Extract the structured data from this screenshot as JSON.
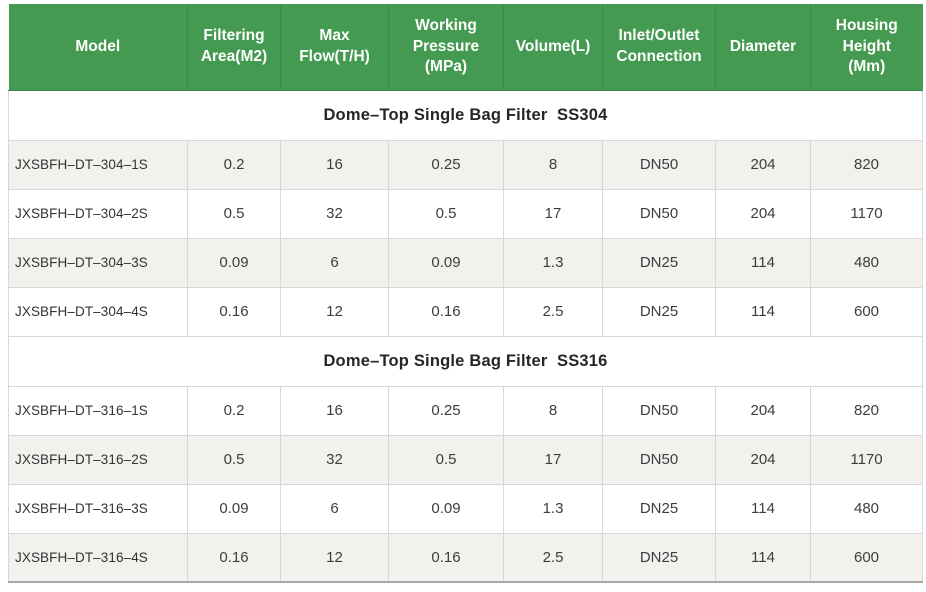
{
  "colors": {
    "header_bg": "#459a51",
    "header_divider": "#3a8a45",
    "header_text": "#ffffff",
    "row_alt_bg": "#f2f1ee",
    "grid_border": "#d8d8d8",
    "bottom_border": "#a6a6a6",
    "body_text": "#3d3d3d",
    "section_text": "#262626"
  },
  "chart_data": {
    "type": "table",
    "columns": [
      "Model",
      "Filtering Area(M2)",
      "Max Flow(T/H)",
      "Working Pressure (MPa)",
      "Volume(L)",
      "Inlet/Outlet Connection",
      "Diameter",
      "Housing Height (Mm)"
    ],
    "columns_display": [
      "Model",
      "Filtering\nArea(M2)",
      "Max\nFlow(T/H)",
      "Working\nPressure\n(MPa)",
      "Volume(L)",
      "Inlet/Outlet\nConnection",
      "Diameter",
      "Housing\nHeight\n(Mm)"
    ],
    "sections": [
      {
        "title": "Dome–Top Single Bag Filter  SS304",
        "rows": [
          [
            "JXSBFH–DT–304–1S",
            "0.2",
            "16",
            "0.25",
            "8",
            "DN50",
            "204",
            "820"
          ],
          [
            "JXSBFH–DT–304–2S",
            "0.5",
            "32",
            "0.5",
            "17",
            "DN50",
            "204",
            "1170"
          ],
          [
            "JXSBFH–DT–304–3S",
            "0.09",
            "6",
            "0.09",
            "1.3",
            "DN25",
            "114",
            "480"
          ],
          [
            "JXSBFH–DT–304–4S",
            "0.16",
            "12",
            "0.16",
            "2.5",
            "DN25",
            "114",
            "600"
          ]
        ]
      },
      {
        "title": "Dome–Top Single Bag Filter  SS316",
        "rows": [
          [
            "JXSBFH–DT–316–1S",
            "0.2",
            "16",
            "0.25",
            "8",
            "DN50",
            "204",
            "820"
          ],
          [
            "JXSBFH–DT–316–2S",
            "0.5",
            "32",
            "0.5",
            "17",
            "DN50",
            "204",
            "1170"
          ],
          [
            "JXSBFH–DT–316–3S",
            "0.09",
            "6",
            "0.09",
            "1.3",
            "DN25",
            "114",
            "480"
          ],
          [
            "JXSBFH–DT–316–4S",
            "0.16",
            "12",
            "0.16",
            "2.5",
            "DN25",
            "114",
            "600"
          ]
        ]
      }
    ]
  }
}
